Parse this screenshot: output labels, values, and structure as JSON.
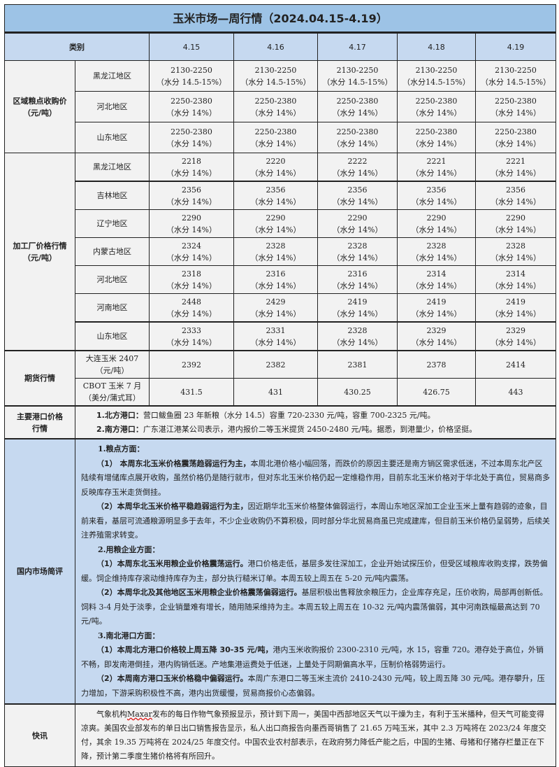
{
  "title": "玉米市场—周行情（2024.04.15-4.19）",
  "header": {
    "category": "类别",
    "dates": [
      "4.15",
      "4.16",
      "4.17",
      "4.18",
      "4.19"
    ]
  },
  "regional": {
    "label": [
      "区域粮点收购价",
      "（元/吨）"
    ],
    "rows": [
      {
        "region": "黑龙江地区",
        "values": [
          "2130-2250",
          "2130-2250",
          "2130-2250",
          "2130-2250",
          "2130-2250"
        ],
        "note": [
          "（水分 14.5-15%）",
          "（水分 14.5-15%）",
          "（水分 14.5-15%）",
          "（水分14.5-15%）",
          "（水分 14.5-15%）"
        ]
      },
      {
        "region": "河北地区",
        "values": [
          "2250-2380",
          "2250-2380",
          "2250-2380",
          "2250-2380",
          "2250-2380"
        ],
        "note": [
          "（水分 14%）",
          "（水分 14%）",
          "（水分 14%）",
          "（水分 14%）",
          "（水分 14%）"
        ]
      },
      {
        "region": "山东地区",
        "values": [
          "2250-2380",
          "2250-2380",
          "2250-2380",
          "2250-2380",
          "2250-2380"
        ],
        "note": [
          "（水分 14%）",
          "（水分 14%）",
          "（水分 14%）",
          "（水分 14%）",
          "（水分 14%）"
        ]
      }
    ]
  },
  "plant": {
    "label": [
      "加工厂价格行情",
      "（元/吨）"
    ],
    "rows": [
      {
        "region": "黑龙江地区",
        "values": [
          "2218",
          "2220",
          "2222",
          "2221",
          "2221"
        ],
        "note": [
          "（水分 14%）",
          "（水分 14%）",
          "（水分 14%）",
          "（水分 14%）",
          "（水分 14%）"
        ]
      },
      {
        "region": "吉林地区",
        "values": [
          "2356",
          "2356",
          "2356",
          "2356",
          "2356"
        ],
        "note": [
          "（水分 14%）",
          "（水分 14%）",
          "（水分 14%）",
          "（水分 14%）",
          "（水分 14%）"
        ]
      },
      {
        "region": "辽宁地区",
        "values": [
          "2290",
          "2290",
          "2290",
          "2290",
          "2290"
        ],
        "note": [
          "（水分 14%）",
          "（水分 14%）",
          "（水分 14%）",
          "（水分 14%）",
          "（水分 14%）"
        ]
      },
      {
        "region": "内蒙古地区",
        "values": [
          "2324",
          "2328",
          "2328",
          "2328",
          "2328"
        ],
        "note": [
          "（水分 14%）",
          "（水分 14%）",
          "（水分 14%）",
          "（水分 14%）",
          "（水分 14%）"
        ]
      },
      {
        "region": "河北地区",
        "values": [
          "2318",
          "2316",
          "2316",
          "2314",
          "2314"
        ],
        "note": [
          "（水分 14%）",
          "（水分 14%）",
          "（水分 14%）",
          "（水分 14%）",
          "（水分 14%）"
        ]
      },
      {
        "region": "河南地区",
        "values": [
          "2448",
          "2429",
          "2419",
          "2419",
          "2419"
        ],
        "note": [
          "（水分 14%）",
          "（水分 14%）",
          "（水分 14%）",
          "（水分 14%）",
          "（水分 14%）"
        ]
      },
      {
        "region": "山东地区",
        "values": [
          "2333",
          "2331",
          "2328",
          "2329",
          "2329"
        ],
        "note": [
          "（水分 14%）",
          "（水分 14%）",
          "（水分 14%）",
          "（水分 14%）",
          "（水分 14%）"
        ]
      }
    ]
  },
  "futures": {
    "label": "期货行情",
    "rows": [
      {
        "name": [
          "大连玉米 2407",
          "（元/吨）"
        ],
        "values": [
          "2392",
          "2382",
          "2381",
          "2378",
          "2414"
        ]
      },
      {
        "name": [
          "CBOT 玉米 7 月",
          "（美分/蒲式耳）"
        ],
        "values": [
          "431.5",
          "431",
          "430.25",
          "426.75",
          "443"
        ]
      }
    ]
  },
  "ports": {
    "label": [
      "主要港口价格",
      "行情"
    ],
    "lines": [
      {
        "bold": "1.北方港口：",
        "text": "营口鲅鱼圈 23 年新粮（水分 14.5）容重 720-2330 元/吨，容重 700-2325 元/吨。"
      },
      {
        "bold": "2.南方港口：",
        "text": "广东湛江港某公司表示，港内报价二等玉米提货 2450-2480 元/吨。据悉，到港量少，价格坚挺。"
      }
    ]
  },
  "commentary": {
    "label": "国内市场简评",
    "sections": [
      {
        "heading": "1.粮点方面：",
        "items": [
          {
            "bold": "（1） 本周东北玉米价格震荡趋弱运行为主，",
            "text": "本周北港价格小幅回落，而跌价的原因主要还是南方销区需求低迷，不过本周东北产区陆续有增储库点展开收购，虽然价格仍是随行就市，但对东北玉米价格仍起一定维稳作用，目前东北玉米价格对于华北处于高位，贸易商多反映库存玉米走货倒挂。"
          },
          {
            "bold": "（2）本周华北玉米价格平稳趋弱运行为主，",
            "text": "因近期华北玉米价格整体偏弱运行，本周山东地区深加工企业玉米上量有趋弱的迹象，目前来看，基层可流通粮源明显多于去年，不少企业收购仍不算积极，同时部分华北贸易商虽已完成建库，但目前玉米价格仍呈弱势，后续关注养殖需求转变。"
          }
        ]
      },
      {
        "heading": "2.用粮企业方面：",
        "items": [
          {
            "bold": "（1）本周东北玉米用粮企业价格震荡运行。",
            "text": "港口价格走低，基层多发往深加工，企业开始试探压价，但受区域粮库收购支撑，跌势偏缓。饲企维持库存滚动维持库存为主，部分执行糙米订单。本周五较上周五在 5-20 元/吨内震荡。"
          },
          {
            "bold": "（2）本周华北及其他地区玉米用粮企业价格震荡偏弱运行。",
            "text": "基层积极出售释放余粮压力，企业库存充足，压价收购，局部再创新低。饲料 3-4 月处于淡季，企业销量难有增长，随用随采维持为主。本周五较上周五在 10-32 元/吨内震荡偏弱，其中河南跌幅最高达到 70 元/吨。"
          }
        ]
      },
      {
        "heading": "3.南北港口方面：",
        "items": [
          {
            "bold": "（1）本周北方港口价格较上周五降 30-35 元/吨，",
            "text": "港内玉米收购报价 2300-2310 元/吨，水 15，容重 720。港存处于高位，外销不畅，即发南港倒挂，港内购销低迷。产地集港运费处于低迷，上量处于同期偏高水平，压制价格弱势运行。"
          },
          {
            "bold": "（2）本周南方港口玉米价格稳中偏弱运行。",
            "text": "本周广东港口二等玉米主流价 2410-2430 元/吨，较上周五降 30 元/吨。港存攀升，压力增加，下游采购积极性不高，港内出货缓慢，贸易商报价心态偏弱。"
          }
        ]
      }
    ]
  },
  "news": {
    "label": "快讯",
    "pre": "气象机构",
    "flagged": "Maxar",
    "text": "发布的每日作物气象预报显示，预计到下周一，美国中西部地区天气以干燥为主，有利于玉米播种，但天气可能变得凉爽。美国农业部发布的单日出口销售报告显示，私人出口商报告向墨西哥销售了 21.65 万吨玉米，其中 2.3 万吨将在 2023/24 年度交付，其余 19.35 万吨将在 2024/25 年度交付。中国农业农村部表示，在政府努力降低产能之后，中国的生猪、母猪和仔猪存栏量正在下降，预计第二季度生猪价格将有所回升。"
  }
}
